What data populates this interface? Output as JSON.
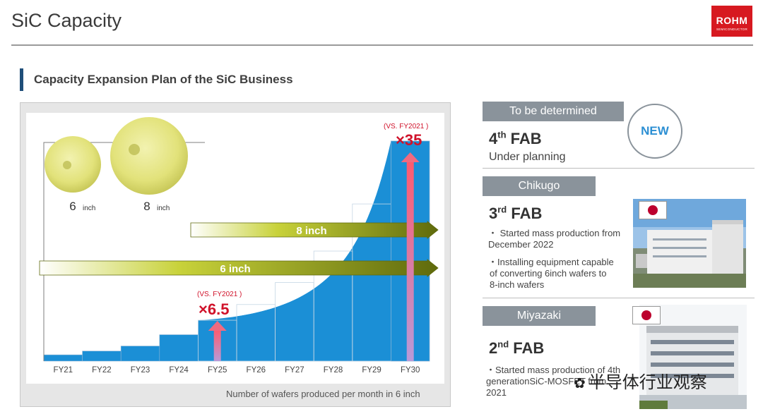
{
  "header": {
    "title": "SiC Capacity",
    "logo_text": "ROHM",
    "logo_subtext": "SEMICONDUCTOR"
  },
  "section": {
    "title": "Capacity Expansion Plan of the SiC Business"
  },
  "wafers": [
    {
      "size": "6",
      "unit": "inch"
    },
    {
      "size": "8",
      "unit": "inch"
    }
  ],
  "chart_data": {
    "type": "area",
    "categories": [
      "FY21",
      "FY22",
      "FY23",
      "FY24",
      "FY25",
      "FY26",
      "FY27",
      "FY28",
      "FY29",
      "FY30"
    ],
    "values": [
      1,
      1.6,
      2.4,
      4.2,
      6.5,
      9,
      12.5,
      17.5,
      25,
      35
    ],
    "xlabel": "Number of wafers produced per month in 6 inch",
    "bands": [
      {
        "label": "6 inch",
        "start": "FY21",
        "end": "FY30"
      },
      {
        "label": "8 inch",
        "start": "FY25",
        "end": "FY30"
      }
    ],
    "annotations": [
      {
        "category": "FY25",
        "prefix": "(VS. FY2021 )",
        "label": "×6.5"
      },
      {
        "category": "FY30",
        "prefix": "(VS. FY2021 )",
        "label": "×35"
      }
    ],
    "colors": {
      "area": "#1b8fd6",
      "band": "#6f7a10",
      "arrow": "#f06a80",
      "label": "#d0122a"
    }
  },
  "fabs": [
    {
      "tag": "To be determined",
      "number": "4",
      "suffix": "th",
      "name": "FAB",
      "lines": [
        "Under planning"
      ],
      "badge": "NEW"
    },
    {
      "tag": "Chikugo",
      "number": "3",
      "suffix": "rd",
      "name": "FAB",
      "lines": [
        "・ Started mass production from",
        "December 2022",
        "・Installing equipment capable",
        "of converting 6inch wafers to",
        "8-inch wafers"
      ]
    },
    {
      "tag": "Miyazaki",
      "number": "2",
      "suffix": "nd",
      "name": "FAB",
      "lines": [
        "・Started mass production of 4th",
        "generationSiC-MOSFET from",
        "2021"
      ]
    }
  ],
  "watermark": {
    "text": "半导体行业观察"
  }
}
